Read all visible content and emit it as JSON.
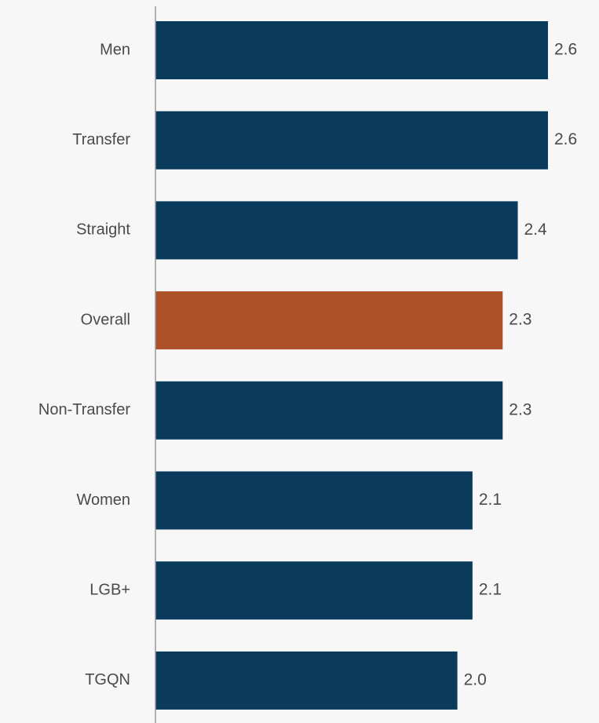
{
  "chart_data": {
    "type": "bar",
    "orientation": "horizontal",
    "categories": [
      "Men",
      "Transfer",
      "Straight",
      "Overall",
      "Non-Transfer",
      "Women",
      "LGB+",
      "TGQN"
    ],
    "values": [
      2.6,
      2.6,
      2.4,
      2.3,
      2.3,
      2.1,
      2.1,
      2.0
    ],
    "value_labels": [
      "2.6",
      "2.6",
      "2.4",
      "2.3",
      "2.3",
      "2.1",
      "2.1",
      "2.0"
    ],
    "highlight_category": "Overall",
    "xlim": [
      0,
      2.6
    ],
    "grid": false,
    "colors": {
      "bar": "#0a3a5c",
      "highlight": "#ab5027",
      "axis": "#9a9a9a",
      "text": "#4a4a4a",
      "background": "#f7f7f7"
    }
  }
}
